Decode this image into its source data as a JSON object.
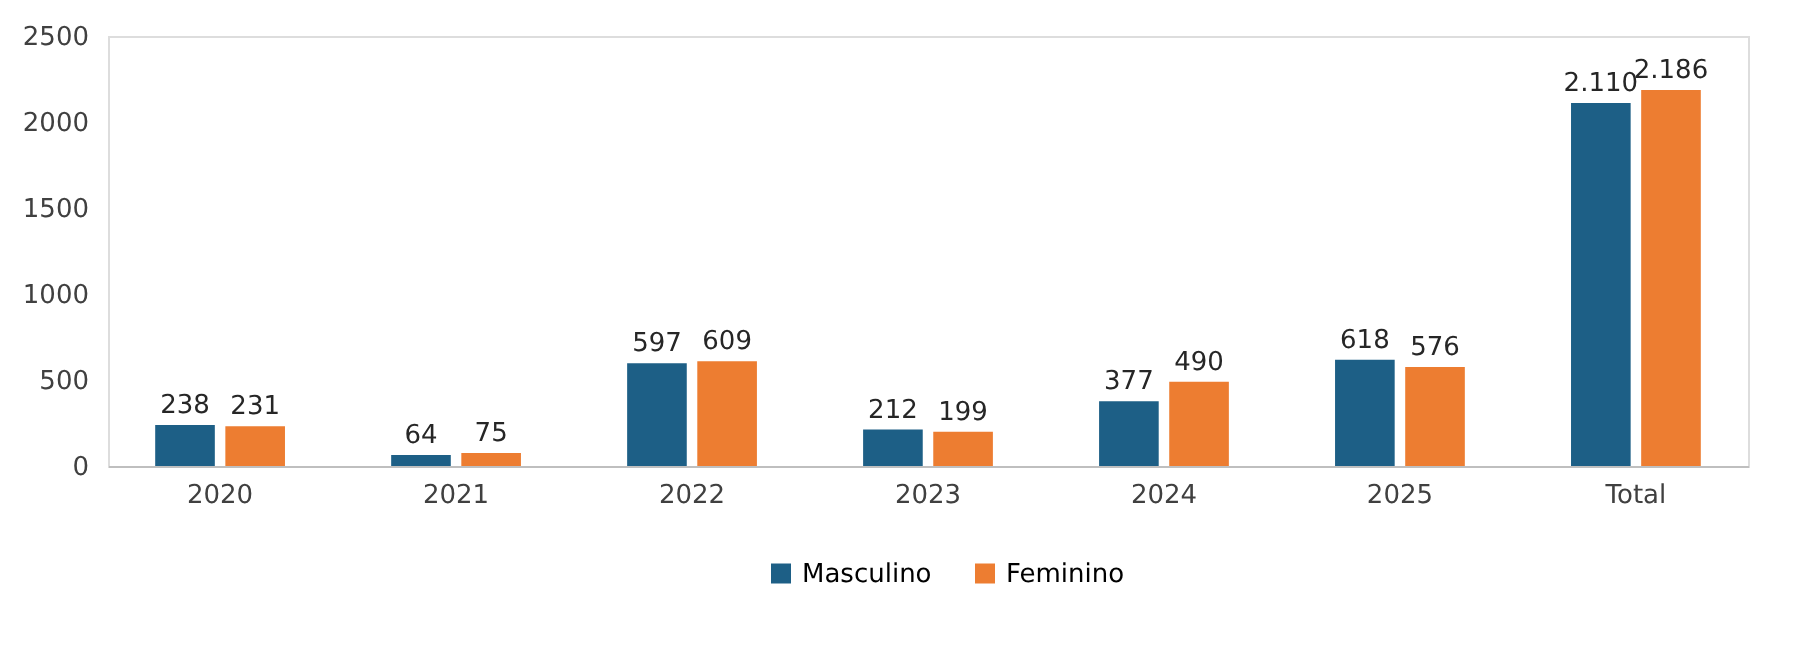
{
  "chart_data": {
    "type": "bar",
    "categories": [
      "2020",
      "2021",
      "2022",
      "2023",
      "2024",
      "2025",
      "Total"
    ],
    "series": [
      {
        "name": "Masculino",
        "color": "#1d5f86",
        "values": [
          238,
          64,
          597,
          212,
          377,
          618,
          2110
        ],
        "value_labels": [
          "238",
          "64",
          "597",
          "212",
          "377",
          "618",
          "2.110"
        ]
      },
      {
        "name": "Feminino",
        "color": "#ed7d31",
        "values": [
          231,
          75,
          609,
          199,
          490,
          576,
          2186
        ],
        "value_labels": [
          "231",
          "75",
          "609",
          "199",
          "490",
          "576",
          "2.186"
        ]
      }
    ],
    "ylim": [
      0,
      2500
    ],
    "yticks": [
      0,
      500,
      1000,
      1500,
      2000,
      2500
    ],
    "grid": false,
    "legend": "bottom"
  }
}
